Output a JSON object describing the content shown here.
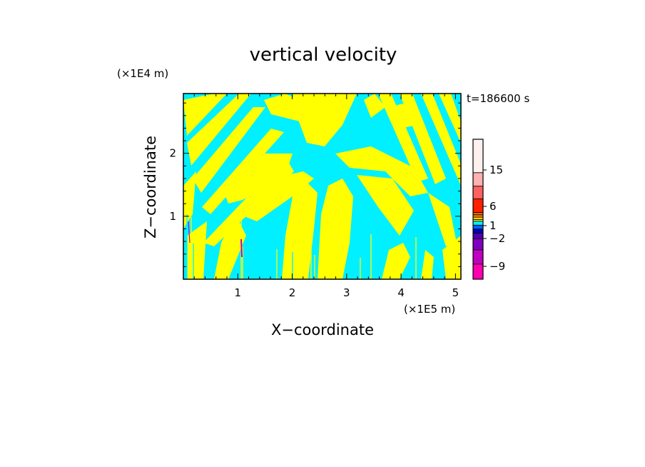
{
  "chart_data": {
    "type": "heatmap",
    "title": "vertical velocity",
    "xlabel": "X−coordinate",
    "ylabel": "Z−coordinate",
    "x_unit": "(×1E5 m)",
    "y_unit": "(×1E4 m)",
    "time_label": "t=186600 s",
    "xlim": [
      0,
      5.1
    ],
    "ylim": [
      0,
      2.95
    ],
    "x_ticks": [
      1,
      2,
      3,
      4,
      5
    ],
    "y_ticks": [
      1,
      2
    ],
    "x_tick_labels": [
      "1",
      "2",
      "3",
      "4",
      "5"
    ],
    "y_tick_labels": [
      "1",
      "2"
    ],
    "field_colors": {
      "positive": "#ffff00",
      "negative": "#00f0ff"
    },
    "colorbar": {
      "levels": [
        {
          "color": "#ff00b0"
        },
        {
          "color": "#c000c0"
        },
        {
          "color": "#8000c0"
        },
        {
          "color": "#5000b0"
        },
        {
          "color": "#0000c0"
        },
        {
          "color": "#0060ff"
        },
        {
          "color": "#00f0ff"
        },
        {
          "color": "#ffff00"
        },
        {
          "color": "#ffd000"
        },
        {
          "color": "#ff8000"
        },
        {
          "color": "#ff6000"
        },
        {
          "color": "#ff2000"
        },
        {
          "color": "#ff6060"
        },
        {
          "color": "#ffb0b0"
        },
        {
          "color": "#fff0f0"
        }
      ],
      "tick_labels": [
        "15",
        "6",
        "1",
        "−2",
        "−9"
      ],
      "tick_values": [
        15,
        6,
        1,
        -2,
        -9
      ]
    }
  }
}
